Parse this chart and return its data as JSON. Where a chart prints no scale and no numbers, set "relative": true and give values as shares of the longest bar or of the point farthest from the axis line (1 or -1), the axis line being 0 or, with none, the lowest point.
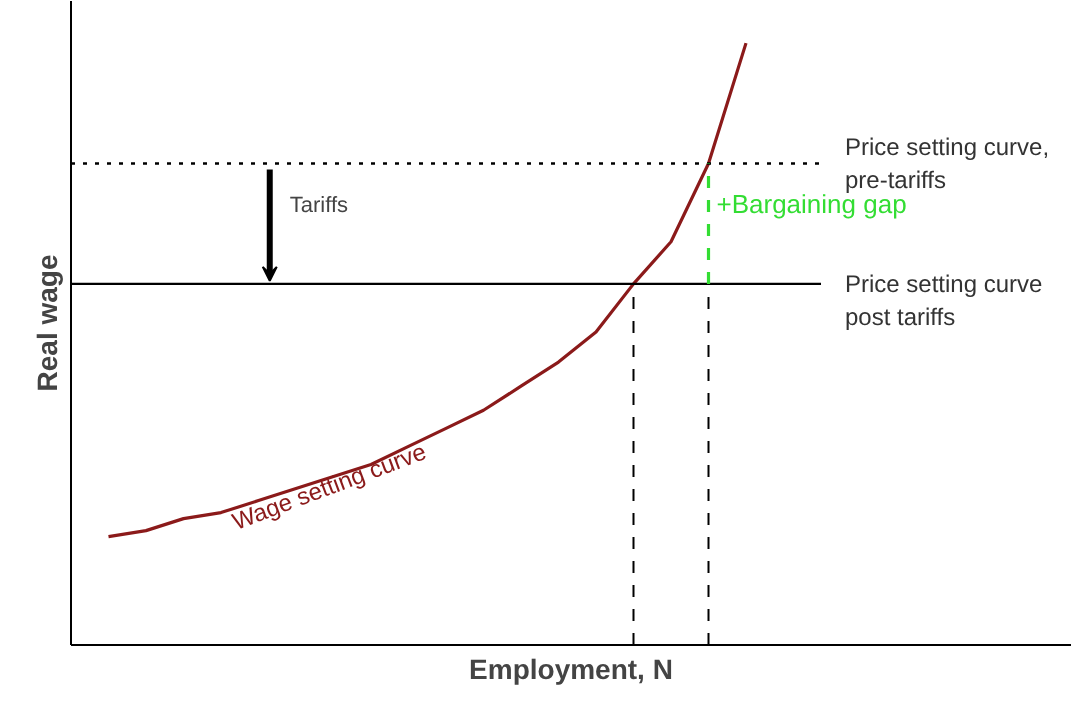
{
  "chart_data": {
    "type": "line",
    "relative": true,
    "xlabel": "Employment, N",
    "ylabel": "Real wage",
    "categories": [
      null,
      null,
      null,
      null,
      null,
      null,
      null,
      null,
      null,
      null,
      null,
      null,
      null,
      null,
      null,
      null,
      null,
      null,
      null,
      null,
      null
    ],
    "series": [
      {
        "name": "Wage setting curve",
        "color": "#8b1a1a",
        "line_style": "solid",
        "values": [
          null,
          0.18,
          0.19,
          0.21,
          0.22,
          0.24,
          0.26,
          0.28,
          0.3,
          0.33,
          0.36,
          0.39,
          0.43,
          0.47,
          0.52,
          0.6,
          0.67,
          0.8,
          1.0,
          null,
          null
        ]
      },
      {
        "name": "Price setting curve, pre-tariffs",
        "color": "#000000",
        "line_style": "dotted",
        "values": [
          0.8,
          0.8,
          0.8,
          0.8,
          0.8,
          0.8,
          0.8,
          0.8,
          0.8,
          0.8,
          0.8,
          0.8,
          0.8,
          0.8,
          0.8,
          0.8,
          0.8,
          0.8,
          0.8,
          0.8,
          0.8
        ]
      },
      {
        "name": "Price setting curve post tariffs",
        "color": "#000000",
        "line_style": "solid",
        "values": [
          0.6,
          0.6,
          0.6,
          0.6,
          0.6,
          0.6,
          0.6,
          0.6,
          0.6,
          0.6,
          0.6,
          0.6,
          0.6,
          0.6,
          0.6,
          0.6,
          0.6,
          0.6,
          0.6,
          0.6,
          0.6
        ]
      }
    ],
    "annotations": [
      "Tariffs",
      "+Bargaining gap"
    ],
    "marker": "none"
  }
}
